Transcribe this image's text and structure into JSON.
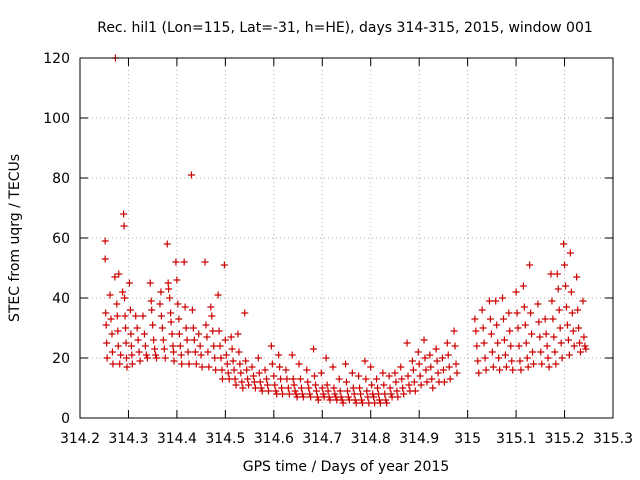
{
  "chart_data": {
    "type": "scatter",
    "title": "Rec. hil1 (Lon=115, Lat=-31, h=HE), days 314-315, 2015, window 001",
    "xlabel": "GPS time / Days of year 2015",
    "ylabel": "STEC from uqrg / TECUs",
    "xlim": [
      314.2,
      315.3
    ],
    "ylim": [
      0,
      120
    ],
    "xticks": [
      314.2,
      314.3,
      314.4,
      314.5,
      314.6,
      314.7,
      314.8,
      314.9,
      315,
      315.1,
      315.2,
      315.3
    ],
    "xtick_labels": [
      "314.2",
      "314.3",
      "314.4",
      "314.5",
      "314.6",
      "314.7",
      "314.8",
      "314.9",
      "315",
      "315.1",
      "315.2",
      "315.3"
    ],
    "yticks": [
      0,
      20,
      40,
      60,
      80,
      100,
      120
    ],
    "ytick_labels": [
      "0",
      "20",
      "40",
      "60",
      "80",
      "100",
      "120"
    ],
    "grid": true,
    "marker": "+",
    "color": "#cc0000",
    "points": [
      [
        314.252,
        59
      ],
      [
        314.252,
        53
      ],
      [
        314.253,
        35
      ],
      [
        314.254,
        31
      ],
      [
        314.255,
        25
      ],
      [
        314.256,
        20
      ],
      [
        314.262,
        41
      ],
      [
        314.264,
        33
      ],
      [
        314.266,
        28
      ],
      [
        314.267,
        22
      ],
      [
        314.268,
        18
      ],
      [
        314.272,
        47
      ],
      [
        314.273,
        120
      ],
      [
        314.276,
        38
      ],
      [
        314.277,
        34
      ],
      [
        314.278,
        29
      ],
      [
        314.279,
        24
      ],
      [
        314.28,
        48
      ],
      [
        314.282,
        18
      ],
      [
        314.284,
        21
      ],
      [
        314.288,
        42
      ],
      [
        314.29,
        68
      ],
      [
        314.291,
        64
      ],
      [
        314.292,
        40
      ],
      [
        314.293,
        34
      ],
      [
        314.294,
        30
      ],
      [
        314.295,
        25
      ],
      [
        314.296,
        20
      ],
      [
        314.297,
        17
      ],
      [
        314.302,
        45
      ],
      [
        314.304,
        36
      ],
      [
        314.305,
        28
      ],
      [
        314.306,
        24
      ],
      [
        314.307,
        21
      ],
      [
        314.308,
        18
      ],
      [
        314.315,
        34
      ],
      [
        314.318,
        30
      ],
      [
        314.32,
        26
      ],
      [
        314.322,
        22
      ],
      [
        314.324,
        19
      ],
      [
        314.33,
        34
      ],
      [
        314.333,
        28
      ],
      [
        314.335,
        24
      ],
      [
        314.337,
        21
      ],
      [
        314.339,
        20
      ],
      [
        314.345,
        45
      ],
      [
        314.347,
        39
      ],
      [
        314.348,
        36
      ],
      [
        314.35,
        31
      ],
      [
        314.352,
        26
      ],
      [
        314.354,
        23
      ],
      [
        314.356,
        21
      ],
      [
        314.358,
        20
      ],
      [
        314.365,
        38
      ],
      [
        314.367,
        42
      ],
      [
        314.368,
        34
      ],
      [
        314.37,
        30
      ],
      [
        314.372,
        26
      ],
      [
        314.374,
        23
      ],
      [
        314.376,
        20
      ],
      [
        314.38,
        58
      ],
      [
        314.382,
        45
      ],
      [
        314.383,
        43
      ],
      [
        314.385,
        40
      ],
      [
        314.387,
        35
      ],
      [
        314.388,
        32
      ],
      [
        314.39,
        28
      ],
      [
        314.392,
        24
      ],
      [
        314.393,
        22
      ],
      [
        314.394,
        19
      ],
      [
        314.398,
        52
      ],
      [
        314.4,
        46
      ],
      [
        314.402,
        38
      ],
      [
        314.404,
        33
      ],
      [
        314.405,
        28
      ],
      [
        314.407,
        24
      ],
      [
        314.409,
        21
      ],
      [
        314.41,
        18
      ],
      [
        314.415,
        52
      ],
      [
        314.417,
        37
      ],
      [
        314.419,
        30
      ],
      [
        314.421,
        26
      ],
      [
        314.423,
        22
      ],
      [
        314.425,
        18
      ],
      [
        314.43,
        81
      ],
      [
        314.432,
        36
      ],
      [
        314.434,
        30
      ],
      [
        314.436,
        26
      ],
      [
        314.438,
        22
      ],
      [
        314.44,
        18
      ],
      [
        314.445,
        28
      ],
      [
        314.448,
        24
      ],
      [
        314.45,
        21
      ],
      [
        314.452,
        17
      ],
      [
        314.458,
        52
      ],
      [
        314.46,
        31
      ],
      [
        314.462,
        27
      ],
      [
        314.464,
        22
      ],
      [
        314.466,
        17
      ],
      [
        314.47,
        37
      ],
      [
        314.472,
        34
      ],
      [
        314.474,
        29
      ],
      [
        314.476,
        24
      ],
      [
        314.478,
        20
      ],
      [
        314.48,
        16
      ],
      [
        314.485,
        41
      ],
      [
        314.487,
        29
      ],
      [
        314.489,
        24
      ],
      [
        314.491,
        20
      ],
      [
        314.493,
        16
      ],
      [
        314.494,
        13
      ],
      [
        314.498,
        51
      ],
      [
        314.5,
        26
      ],
      [
        314.502,
        21
      ],
      [
        314.504,
        18
      ],
      [
        314.506,
        15
      ],
      [
        314.508,
        13
      ],
      [
        314.512,
        27
      ],
      [
        314.514,
        23
      ],
      [
        314.516,
        19
      ],
      [
        314.518,
        16
      ],
      [
        314.52,
        13
      ],
      [
        314.522,
        11
      ],
      [
        314.526,
        28
      ],
      [
        314.528,
        22
      ],
      [
        314.53,
        18
      ],
      [
        314.532,
        15
      ],
      [
        314.534,
        12
      ],
      [
        314.536,
        10
      ],
      [
        314.54,
        35
      ],
      [
        314.542,
        19
      ],
      [
        314.544,
        16
      ],
      [
        314.546,
        13
      ],
      [
        314.548,
        11
      ],
      [
        314.555,
        17
      ],
      [
        314.558,
        14
      ],
      [
        314.56,
        12
      ],
      [
        314.562,
        10
      ],
      [
        314.568,
        20
      ],
      [
        314.57,
        15
      ],
      [
        314.572,
        12
      ],
      [
        314.574,
        10
      ],
      [
        314.576,
        9
      ],
      [
        314.582,
        16
      ],
      [
        314.585,
        13
      ],
      [
        314.587,
        11
      ],
      [
        314.589,
        9
      ],
      [
        314.595,
        24
      ],
      [
        314.597,
        18
      ],
      [
        314.6,
        14
      ],
      [
        314.602,
        11
      ],
      [
        314.604,
        9
      ],
      [
        314.606,
        8
      ],
      [
        314.61,
        21
      ],
      [
        314.612,
        17
      ],
      [
        314.614,
        13
      ],
      [
        314.616,
        10
      ],
      [
        314.618,
        8
      ],
      [
        314.625,
        16
      ],
      [
        314.627,
        13
      ],
      [
        314.63,
        10
      ],
      [
        314.632,
        8
      ],
      [
        314.638,
        21
      ],
      [
        314.64,
        13
      ],
      [
        314.642,
        11
      ],
      [
        314.644,
        9
      ],
      [
        314.646,
        8
      ],
      [
        314.648,
        7
      ],
      [
        314.652,
        18
      ],
      [
        314.655,
        13
      ],
      [
        314.657,
        10
      ],
      [
        314.659,
        8
      ],
      [
        314.661,
        7
      ],
      [
        314.668,
        16
      ],
      [
        314.67,
        12
      ],
      [
        314.672,
        10
      ],
      [
        314.674,
        8
      ],
      [
        314.676,
        7
      ],
      [
        314.682,
        23
      ],
      [
        314.684,
        14
      ],
      [
        314.686,
        11
      ],
      [
        314.688,
        9
      ],
      [
        314.69,
        7
      ],
      [
        314.692,
        6
      ],
      [
        314.698,
        15
      ],
      [
        314.7,
        10
      ],
      [
        314.702,
        8
      ],
      [
        314.704,
        7
      ],
      [
        314.708,
        20
      ],
      [
        314.71,
        11
      ],
      [
        314.712,
        9
      ],
      [
        314.714,
        7
      ],
      [
        314.716,
        6
      ],
      [
        314.722,
        17
      ],
      [
        314.724,
        10
      ],
      [
        314.726,
        8
      ],
      [
        314.728,
        7
      ],
      [
        314.73,
        6
      ],
      [
        314.735,
        13
      ],
      [
        314.737,
        9
      ],
      [
        314.739,
        7
      ],
      [
        314.741,
        6
      ],
      [
        314.743,
        5
      ],
      [
        314.748,
        18
      ],
      [
        314.75,
        12
      ],
      [
        314.752,
        9
      ],
      [
        314.754,
        7
      ],
      [
        314.756,
        6
      ],
      [
        314.762,
        15
      ],
      [
        314.764,
        10
      ],
      [
        314.766,
        8
      ],
      [
        314.768,
        6
      ],
      [
        314.77,
        5
      ],
      [
        314.775,
        14
      ],
      [
        314.777,
        10
      ],
      [
        314.779,
        8
      ],
      [
        314.781,
        6
      ],
      [
        314.783,
        5
      ],
      [
        314.788,
        19
      ],
      [
        314.79,
        13
      ],
      [
        314.792,
        9
      ],
      [
        314.794,
        7
      ],
      [
        314.796,
        5
      ],
      [
        314.8,
        17
      ],
      [
        314.802,
        11
      ],
      [
        314.804,
        8
      ],
      [
        314.806,
        7
      ],
      [
        314.808,
        5
      ],
      [
        314.812,
        13
      ],
      [
        314.814,
        10
      ],
      [
        314.816,
        8
      ],
      [
        314.818,
        6
      ],
      [
        314.82,
        5
      ],
      [
        314.825,
        15
      ],
      [
        314.827,
        11
      ],
      [
        314.829,
        8
      ],
      [
        314.831,
        6
      ],
      [
        314.833,
        5
      ],
      [
        314.838,
        14
      ],
      [
        314.84,
        10
      ],
      [
        314.842,
        8
      ],
      [
        314.844,
        7
      ],
      [
        314.85,
        15
      ],
      [
        314.852,
        12
      ],
      [
        314.854,
        9
      ],
      [
        314.856,
        7
      ],
      [
        314.862,
        17
      ],
      [
        314.864,
        13
      ],
      [
        314.866,
        10
      ],
      [
        314.868,
        8
      ],
      [
        314.875,
        25
      ],
      [
        314.877,
        14
      ],
      [
        314.879,
        11
      ],
      [
        314.881,
        9
      ],
      [
        314.886,
        19
      ],
      [
        314.888,
        16
      ],
      [
        314.89,
        12
      ],
      [
        314.892,
        9
      ],
      [
        314.898,
        22
      ],
      [
        314.9,
        18
      ],
      [
        314.902,
        14
      ],
      [
        314.904,
        11
      ],
      [
        314.91,
        26
      ],
      [
        314.912,
        20
      ],
      [
        314.914,
        16
      ],
      [
        314.916,
        12
      ],
      [
        314.922,
        21
      ],
      [
        314.924,
        17
      ],
      [
        314.926,
        13
      ],
      [
        314.928,
        10
      ],
      [
        314.935,
        23
      ],
      [
        314.937,
        19
      ],
      [
        314.939,
        15
      ],
      [
        314.941,
        12
      ],
      [
        314.948,
        20
      ],
      [
        314.95,
        16
      ],
      [
        314.952,
        12
      ],
      [
        314.958,
        25
      ],
      [
        314.96,
        21
      ],
      [
        314.962,
        17
      ],
      [
        314.964,
        13
      ],
      [
        314.972,
        29
      ],
      [
        314.974,
        24
      ],
      [
        314.976,
        18
      ],
      [
        314.978,
        15
      ],
      [
        315.015,
        33
      ],
      [
        315.017,
        29
      ],
      [
        315.019,
        24
      ],
      [
        315.021,
        19
      ],
      [
        315.023,
        15
      ],
      [
        315.03,
        36
      ],
      [
        315.032,
        30
      ],
      [
        315.034,
        25
      ],
      [
        315.036,
        20
      ],
      [
        315.038,
        16
      ],
      [
        315.045,
        39
      ],
      [
        315.047,
        33
      ],
      [
        315.049,
        28
      ],
      [
        315.051,
        22
      ],
      [
        315.053,
        17
      ],
      [
        315.058,
        39
      ],
      [
        315.06,
        31
      ],
      [
        315.062,
        25
      ],
      [
        315.064,
        20
      ],
      [
        315.066,
        16
      ],
      [
        315.072,
        40
      ],
      [
        315.074,
        33
      ],
      [
        315.076,
        26
      ],
      [
        315.078,
        21
      ],
      [
        315.08,
        17
      ],
      [
        315.085,
        35
      ],
      [
        315.087,
        29
      ],
      [
        315.089,
        24
      ],
      [
        315.091,
        19
      ],
      [
        315.093,
        16
      ],
      [
        315.1,
        42
      ],
      [
        315.102,
        35
      ],
      [
        315.104,
        30
      ],
      [
        315.106,
        24
      ],
      [
        315.108,
        19
      ],
      [
        315.11,
        16
      ],
      [
        315.115,
        44
      ],
      [
        315.117,
        37
      ],
      [
        315.119,
        31
      ],
      [
        315.121,
        25
      ],
      [
        315.123,
        20
      ],
      [
        315.125,
        17
      ],
      [
        315.128,
        51
      ],
      [
        315.13,
        35
      ],
      [
        315.132,
        28
      ],
      [
        315.134,
        22
      ],
      [
        315.136,
        18
      ],
      [
        315.145,
        38
      ],
      [
        315.147,
        32
      ],
      [
        315.149,
        27
      ],
      [
        315.151,
        22
      ],
      [
        315.153,
        18
      ],
      [
        315.16,
        33
      ],
      [
        315.162,
        28
      ],
      [
        315.164,
        24
      ],
      [
        315.166,
        20
      ],
      [
        315.168,
        17
      ],
      [
        315.172,
        48
      ],
      [
        315.174,
        39
      ],
      [
        315.176,
        33
      ],
      [
        315.178,
        27
      ],
      [
        315.18,
        22
      ],
      [
        315.182,
        18
      ],
      [
        315.185,
        48
      ],
      [
        315.187,
        43
      ],
      [
        315.189,
        36
      ],
      [
        315.191,
        30
      ],
      [
        315.193,
        25
      ],
      [
        315.195,
        20
      ],
      [
        315.198,
        58
      ],
      [
        315.2,
        51
      ],
      [
        315.202,
        44
      ],
      [
        315.204,
        37
      ],
      [
        315.206,
        31
      ],
      [
        315.208,
        26
      ],
      [
        315.21,
        21
      ],
      [
        315.212,
        55
      ],
      [
        315.214,
        42
      ],
      [
        315.216,
        35
      ],
      [
        315.218,
        29
      ],
      [
        315.22,
        24
      ],
      [
        315.225,
        47
      ],
      [
        315.227,
        36
      ],
      [
        315.229,
        30
      ],
      [
        315.231,
        25
      ],
      [
        315.233,
        22
      ],
      [
        315.238,
        39
      ],
      [
        315.24,
        27
      ],
      [
        315.242,
        24
      ],
      [
        315.244,
        23
      ]
    ]
  }
}
